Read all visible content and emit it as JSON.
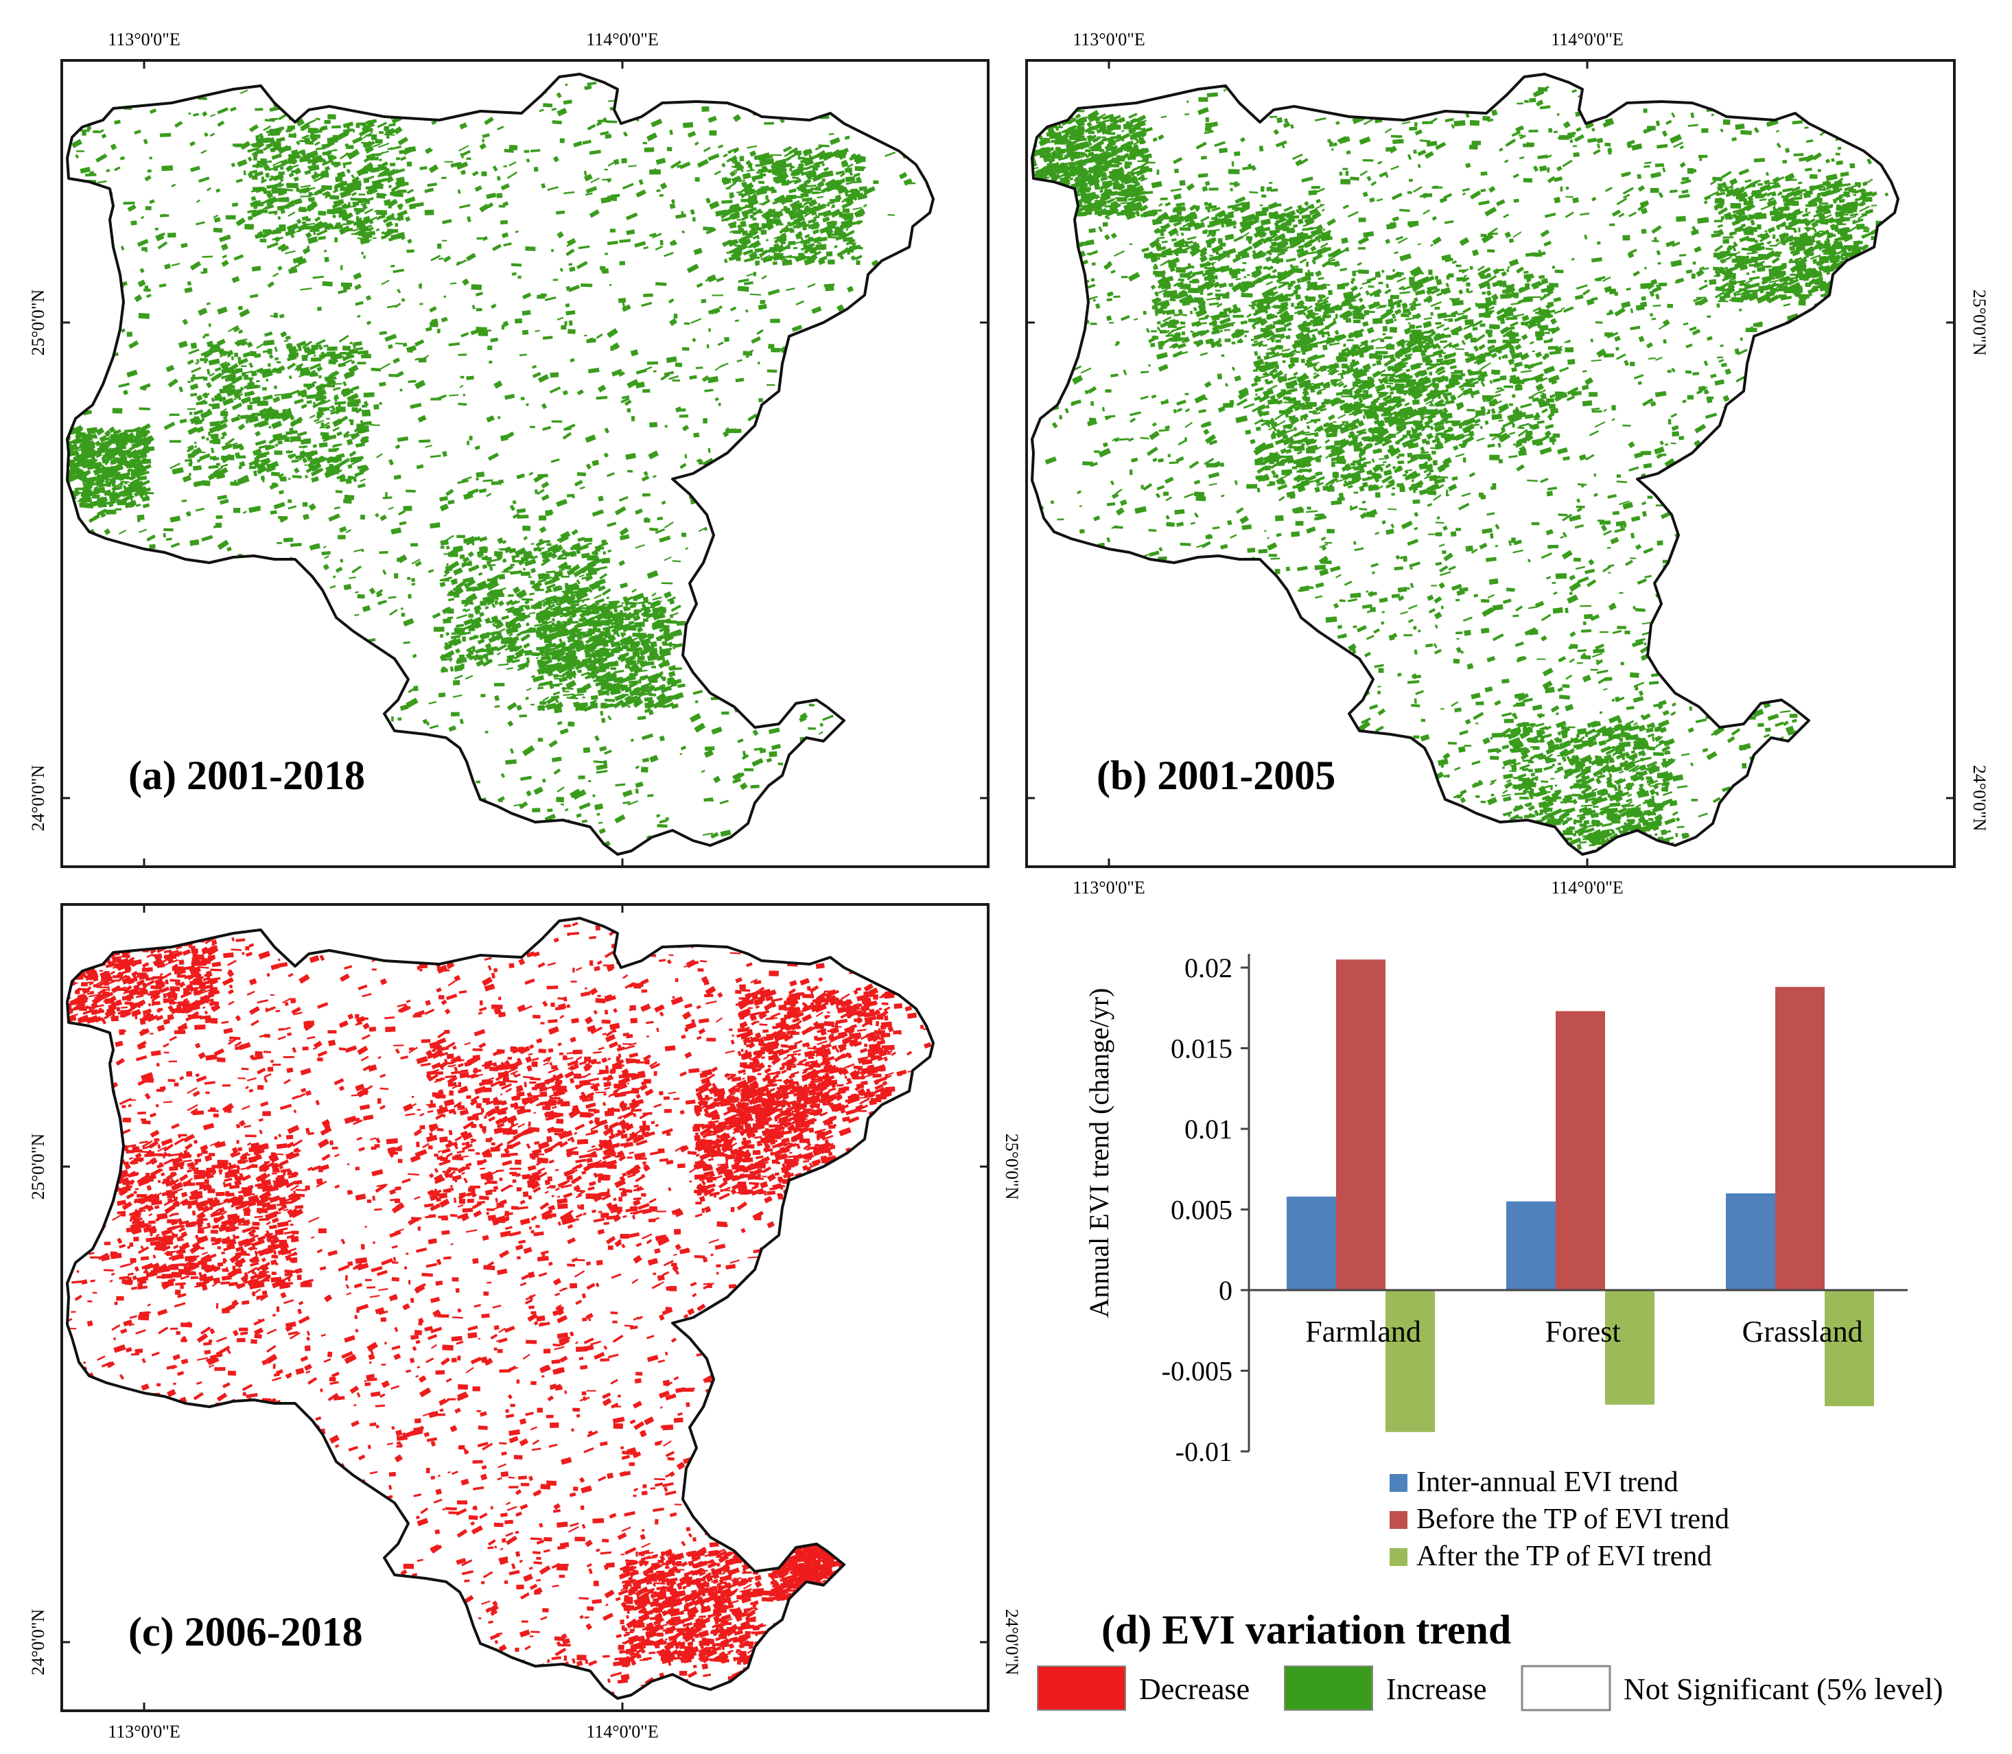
{
  "colors": {
    "decrease": "#ee1c1c",
    "increase": "#3a9c1c",
    "bar_inter": "#4f81bd",
    "bar_before": "#c0504d",
    "bar_after": "#9bbb59",
    "frame": "#1a1a1a"
  },
  "coords": {
    "lon_113": "113°0'0\"E",
    "lon_114": "114°0'0\"E",
    "lat_25": "25°0'0\"N",
    "lat_24": "24°0'0\"N"
  },
  "panels": {
    "a": {
      "label": "(a) 2001-2018",
      "pattern": "increase"
    },
    "b": {
      "label": "(b) 2001-2005",
      "pattern": "increase"
    },
    "c": {
      "label": "(c) 2006-2018",
      "pattern": "decrease"
    },
    "d": {
      "label": "(d) EVI variation trend"
    }
  },
  "map_legend": {
    "decrease": "Decrease",
    "increase": "Increase",
    "not_significant": "Not Significant (5% level)"
  },
  "chart_data": {
    "type": "bar",
    "title": "(d) EVI variation trend",
    "categories": [
      "Farmland",
      "Forest",
      "Grassland"
    ],
    "series": [
      {
        "name": "Inter-annual EVI trend",
        "values": [
          0.0058,
          0.0055,
          0.006
        ]
      },
      {
        "name": "Before the TP of EVI trend",
        "values": [
          0.0205,
          0.0173,
          0.0188
        ]
      },
      {
        "name": "After the TP of EVI trend",
        "values": [
          -0.0088,
          -0.0071,
          -0.0072
        ]
      }
    ],
    "ylabel": "Annual EVI trend (change/yr)",
    "xlabel": "",
    "ylim": [
      -0.01,
      0.02
    ],
    "yticks": [
      -0.01,
      -0.005,
      0,
      0.005,
      0.01,
      0.015,
      0.02
    ],
    "ytick_labels": [
      "-0.01",
      "-0.005",
      "0",
      "0.005",
      "0.01",
      "0.015",
      "0.02"
    ],
    "grid": false,
    "legend_position": "bottom"
  }
}
